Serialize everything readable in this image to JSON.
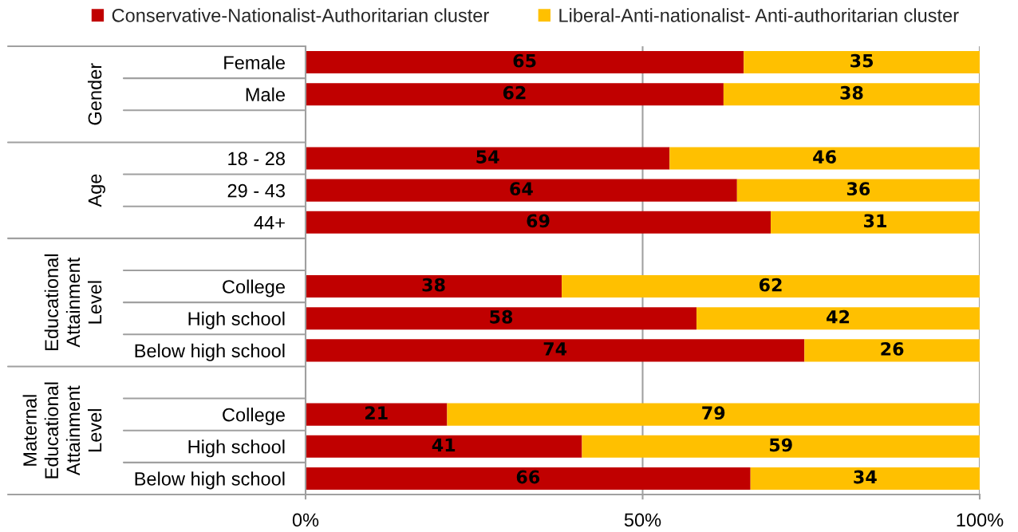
{
  "chart_data": {
    "type": "bar",
    "orientation": "horizontal",
    "stacked": true,
    "categories": [
      "Female",
      "Male",
      null,
      "18 - 28",
      "29 - 43",
      "44+",
      null,
      "College",
      "High school",
      "Below high school",
      null,
      "College",
      "High school",
      "Below high school"
    ],
    "series": [
      {
        "name": "Conservative-Nationalist-Authoritarian cluster",
        "color": "#c00000",
        "values": [
          65,
          62,
          null,
          54,
          64,
          69,
          null,
          38,
          58,
          74,
          null,
          21,
          41,
          66
        ]
      },
      {
        "name": "Liberal-Anti-nationalist- Anti-authoritarian cluster",
        "color": "#ffc000",
        "values": [
          35,
          38,
          null,
          46,
          36,
          31,
          null,
          62,
          42,
          26,
          null,
          79,
          59,
          34
        ]
      }
    ],
    "xlim": [
      0,
      100
    ],
    "xticks": [
      {
        "value": 0,
        "label": "0%"
      },
      {
        "value": 50,
        "label": "50%"
      },
      {
        "value": 100,
        "label": "100%"
      }
    ],
    "grid": "x",
    "legend": "top",
    "data_labels": true,
    "annotations": [
      "Gender",
      "Age",
      "Educational\nAttainment\nLevel",
      "Maternal\nEducational\nAttainment\nLevel"
    ]
  }
}
